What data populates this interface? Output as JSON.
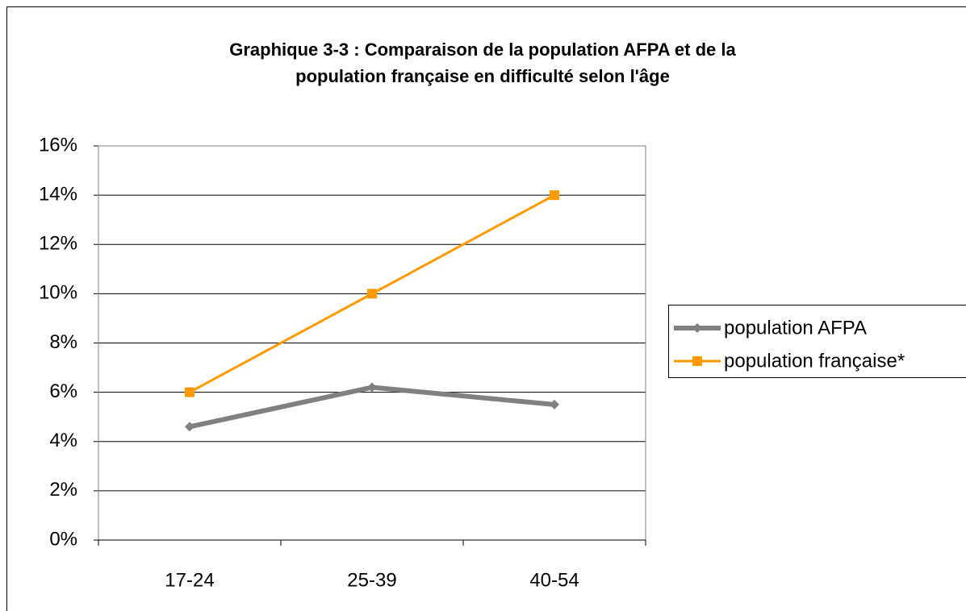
{
  "chart_data": {
    "type": "line",
    "title": [
      "Graphique 3-3 : Comparaison de la population AFPA et de la",
      "population française en difficulté selon l'âge"
    ],
    "categories": [
      "17-24",
      "25-39",
      "40-54"
    ],
    "series": [
      {
        "name": "population AFPA",
        "color": "#808080",
        "values": [
          4.6,
          6.2,
          5.5
        ]
      },
      {
        "name": "population française*",
        "color": "#FF9900",
        "values": [
          6,
          10,
          14
        ]
      }
    ],
    "ylim": [
      0,
      16
    ],
    "yticks": [
      {
        "value": 0,
        "label": "0%"
      },
      {
        "value": 2,
        "label": "2%"
      },
      {
        "value": 4,
        "label": "4%"
      },
      {
        "value": 6,
        "label": "6%"
      },
      {
        "value": 8,
        "label": "8%"
      },
      {
        "value": 10,
        "label": "10%"
      },
      {
        "value": 12,
        "label": "12%"
      },
      {
        "value": 14,
        "label": "14%"
      },
      {
        "value": 16,
        "label": "16%"
      }
    ],
    "grid": true,
    "legend": "right"
  }
}
